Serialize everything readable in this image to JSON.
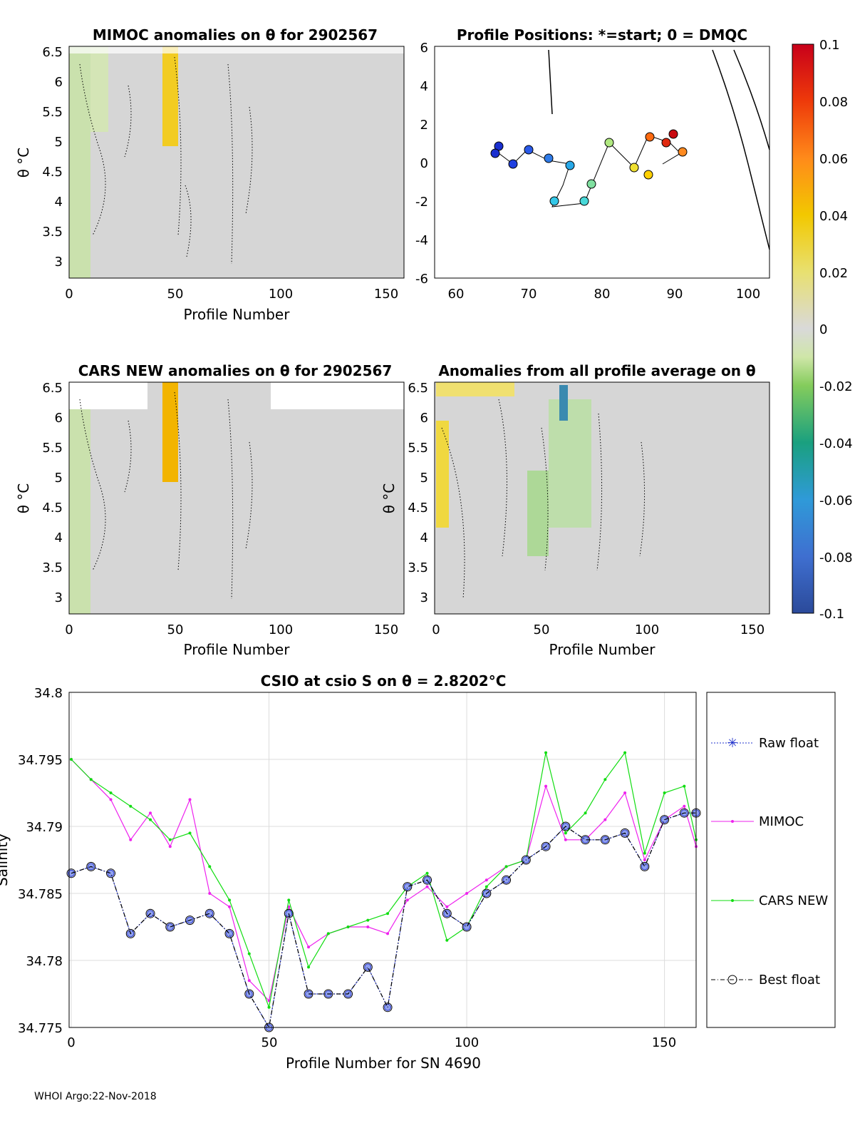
{
  "figure": {
    "footer": "WHOI Argo:22-Nov-2018"
  },
  "panels": {
    "mimoc": {
      "title": "MIMOC anomalies on θ  for 2902567",
      "xlabel": "Profile Number",
      "ylabel": "θ °C",
      "yticks": [
        "6.5",
        "6",
        "5.5",
        "5",
        "4.5",
        "4",
        "3.5",
        "3"
      ],
      "xticks": [
        "0",
        "50",
        "100",
        "150"
      ]
    },
    "positions": {
      "title": "Profile Positions: *=start; 0 = DMQC",
      "yticks": [
        "6",
        "4",
        "2",
        "0",
        "-2",
        "-4",
        "-6"
      ],
      "xticks": [
        "60",
        "70",
        "80",
        "90",
        "100"
      ]
    },
    "cars": {
      "title": "CARS NEW anomalies on θ for 2902567",
      "xlabel": "Profile Number",
      "ylabel": "θ °C",
      "yticks": [
        "6.5",
        "6",
        "5.5",
        "5",
        "4.5",
        "4",
        "3.5",
        "3"
      ],
      "xticks": [
        "0",
        "50",
        "100",
        "150"
      ]
    },
    "allavg": {
      "title": "Anomalies from all profile average on θ",
      "xlabel": "Profile Number",
      "ylabel": "θ °C",
      "yticks": [
        "6.5",
        "6",
        "5.5",
        "5",
        "4.5",
        "4",
        "3.5",
        "3"
      ],
      "xticks": [
        "0",
        "50",
        "100",
        "150"
      ]
    }
  },
  "colorbar": {
    "ticks": [
      "0.1",
      "0.08",
      "0.06",
      "0.04",
      "0.02",
      "0",
      "-0.02",
      "-0.04",
      "-0.06",
      "-0.08",
      "-0.1"
    ]
  },
  "chart_data": {
    "type": "line",
    "title": "CSIO at csio S on θ = 2.8202°C",
    "xlabel": "Profile Number for SN 4690",
    "ylabel": "Salinity",
    "xlim": [
      0,
      158
    ],
    "ylim": [
      34.775,
      34.8
    ],
    "xticks": [
      "0",
      "50",
      "100",
      "150"
    ],
    "yticks": [
      "34.8",
      "34.795",
      "34.79",
      "34.785",
      "34.78",
      "34.775"
    ],
    "legend_position": "right-outside",
    "legend": [
      "Raw float",
      "MIMOC",
      "CARS NEW",
      "Best float"
    ],
    "series": [
      {
        "name": "Raw float",
        "color": "#2233cc",
        "x": [
          0,
          5,
          10,
          15,
          20,
          25,
          30,
          35,
          40,
          45,
          50,
          55,
          60,
          65,
          70,
          75,
          80,
          85,
          90,
          95,
          100,
          105,
          110,
          115,
          120,
          125,
          130,
          135,
          140,
          145,
          150,
          155,
          158
        ],
        "y": [
          34.7865,
          34.787,
          34.7865,
          34.782,
          34.7835,
          34.7825,
          34.783,
          34.7835,
          34.782,
          34.7775,
          34.775,
          34.7835,
          34.7775,
          34.7775,
          34.7775,
          34.7795,
          34.7765,
          34.7855,
          34.786,
          34.7835,
          34.7825,
          34.785,
          34.786,
          34.7875,
          34.7885,
          34.79,
          34.789,
          34.789,
          34.7895,
          34.787,
          34.7905,
          34.791,
          34.791
        ]
      },
      {
        "name": "MIMOC",
        "color": "#ee22ee",
        "x": [
          0,
          5,
          10,
          15,
          20,
          25,
          30,
          35,
          40,
          45,
          50,
          55,
          60,
          65,
          70,
          75,
          80,
          85,
          90,
          95,
          100,
          105,
          110,
          115,
          120,
          125,
          130,
          135,
          140,
          145,
          150,
          155,
          158
        ],
        "y": [
          34.795,
          34.7935,
          34.792,
          34.789,
          34.791,
          34.7885,
          34.792,
          34.785,
          34.784,
          34.7785,
          34.777,
          34.784,
          34.781,
          34.782,
          34.7825,
          34.7825,
          34.782,
          34.7845,
          34.7855,
          34.784,
          34.785,
          34.786,
          34.787,
          34.7875,
          34.793,
          34.789,
          34.789,
          34.7905,
          34.7925,
          34.7875,
          34.7905,
          34.7915,
          34.7885
        ]
      },
      {
        "name": "CARS NEW",
        "color": "#11dd11",
        "x": [
          0,
          5,
          10,
          15,
          20,
          25,
          30,
          35,
          40,
          45,
          50,
          55,
          60,
          65,
          70,
          75,
          80,
          85,
          90,
          95,
          100,
          105,
          110,
          115,
          120,
          125,
          130,
          135,
          140,
          145,
          150,
          155,
          158
        ],
        "y": [
          34.795,
          34.7935,
          34.7925,
          34.7915,
          34.7905,
          34.789,
          34.7895,
          34.787,
          34.7845,
          34.7805,
          34.7765,
          34.7845,
          34.7795,
          34.782,
          34.7825,
          34.783,
          34.7835,
          34.7855,
          34.7865,
          34.7815,
          34.7825,
          34.7855,
          34.787,
          34.7875,
          34.7955,
          34.7895,
          34.791,
          34.7935,
          34.7955,
          34.788,
          34.7925,
          34.793,
          34.789
        ]
      },
      {
        "name": "Best float",
        "color": "#000000",
        "x": [
          0,
          5,
          10,
          15,
          20,
          25,
          30,
          35,
          40,
          45,
          50,
          55,
          60,
          65,
          70,
          75,
          80,
          85,
          90,
          95,
          100,
          105,
          110,
          115,
          120,
          125,
          130,
          135,
          140,
          145,
          150,
          155,
          158
        ],
        "y": [
          34.7865,
          34.787,
          34.7865,
          34.782,
          34.7835,
          34.7825,
          34.783,
          34.7835,
          34.782,
          34.7775,
          34.775,
          34.7835,
          34.7775,
          34.7775,
          34.7775,
          34.7795,
          34.7765,
          34.7855,
          34.786,
          34.7835,
          34.7825,
          34.785,
          34.786,
          34.7875,
          34.7885,
          34.79,
          34.789,
          34.789,
          34.7895,
          34.787,
          34.7905,
          34.791,
          34.791
        ]
      }
    ]
  }
}
